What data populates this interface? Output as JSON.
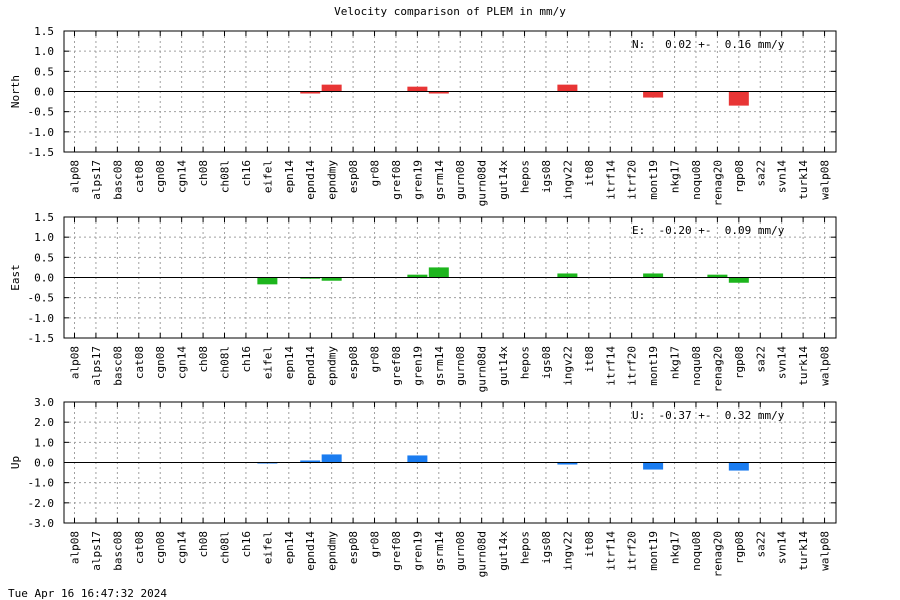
{
  "title": "Velocity comparison of PLEM in mm/y",
  "timestamp": "Tue Apr 16 16:47:32 2024",
  "chart_data": [
    {
      "type": "bar",
      "ylabel": "North",
      "ylim": [
        -1.5,
        1.5
      ],
      "yticks": [
        "1.5",
        "1.0",
        "0.5",
        "0.0",
        "-0.5",
        "-1.0",
        "-1.5"
      ],
      "grid": true,
      "color": "#e83535",
      "annotation": "N:   0.02 +-  0.16 mm/y",
      "categories": [
        "alp08",
        "alps17",
        "basc08",
        "cat08",
        "cgn08",
        "cgn14",
        "ch08",
        "ch08l",
        "ch16",
        "eifel",
        "epn14",
        "epnd14",
        "epndmy",
        "esp08",
        "gr08",
        "gref08",
        "gren19",
        "gsrm14",
        "gurn08",
        "gurn08d",
        "gut14x",
        "hepos",
        "igs08",
        "ingv22",
        "it08",
        "itrf14",
        "itrf20",
        "mont19",
        "nkg17",
        "noqu08",
        "renag20",
        "rgp08",
        "sa22",
        "svn14",
        "turk14",
        "walp08"
      ],
      "values": [
        0,
        0,
        0,
        0,
        0,
        0,
        0,
        0,
        0,
        0,
        0,
        -0.05,
        0.17,
        0,
        0,
        0,
        0.12,
        -0.05,
        0,
        0,
        0,
        0,
        0,
        0.17,
        0,
        0,
        0,
        -0.15,
        0,
        0,
        0,
        -0.35,
        0,
        0,
        0,
        0
      ]
    },
    {
      "type": "bar",
      "ylabel": "East",
      "ylim": [
        -1.5,
        1.5
      ],
      "yticks": [
        "1.5",
        "1.0",
        "0.5",
        "0.0",
        "-0.5",
        "-1.0",
        "-1.5"
      ],
      "grid": true,
      "color": "#1db51d",
      "annotation": "E:  -0.20 +-  0.09 mm/y",
      "categories": [
        "alp08",
        "alps17",
        "basc08",
        "cat08",
        "cgn08",
        "cgn14",
        "ch08",
        "ch08l",
        "ch16",
        "eifel",
        "epn14",
        "epnd14",
        "epndmy",
        "esp08",
        "gr08",
        "gref08",
        "gren19",
        "gsrm14",
        "gurn08",
        "gurn08d",
        "gut14x",
        "hepos",
        "igs08",
        "ingv22",
        "it08",
        "itrf14",
        "itrf20",
        "mont19",
        "nkg17",
        "noqu08",
        "renag20",
        "rgp08",
        "sa22",
        "svn14",
        "turk14",
        "walp08"
      ],
      "values": [
        0,
        0,
        0,
        0,
        0,
        0,
        0,
        0,
        0,
        -0.17,
        0,
        -0.03,
        -0.08,
        0,
        0,
        0,
        0.07,
        0.25,
        0,
        0,
        0,
        0,
        0,
        0.1,
        0,
        0,
        0,
        0.1,
        0,
        0,
        0.07,
        -0.13,
        0,
        0,
        0,
        0
      ]
    },
    {
      "type": "bar",
      "ylabel": "Up",
      "ylim": [
        -3.0,
        3.0
      ],
      "yticks": [
        "3.0",
        "2.0",
        "1.0",
        "0.0",
        "-1.0",
        "-2.0",
        "-3.0"
      ],
      "grid": true,
      "color": "#1a7cf0",
      "annotation": "U:  -0.37 +-  0.32 mm/y",
      "categories": [
        "alp08",
        "alps17",
        "basc08",
        "cat08",
        "cgn08",
        "cgn14",
        "ch08",
        "ch08l",
        "ch16",
        "eifel",
        "epn14",
        "epnd14",
        "epndmy",
        "esp08",
        "gr08",
        "gref08",
        "gren19",
        "gsrm14",
        "gurn08",
        "gurn08d",
        "gut14x",
        "hepos",
        "igs08",
        "ingv22",
        "it08",
        "itrf14",
        "itrf20",
        "mont19",
        "nkg17",
        "noqu08",
        "renag20",
        "rgp08",
        "sa22",
        "svn14",
        "turk14",
        "walp08"
      ],
      "values": [
        0,
        0,
        0,
        0,
        0,
        0,
        0,
        0,
        0,
        -0.05,
        0,
        0.1,
        0.4,
        0,
        0,
        0,
        0.35,
        0,
        0,
        0,
        0,
        0,
        0,
        -0.1,
        0,
        0,
        0,
        -0.35,
        0,
        0,
        0,
        -0.4,
        0,
        0,
        0,
        0
      ]
    }
  ]
}
